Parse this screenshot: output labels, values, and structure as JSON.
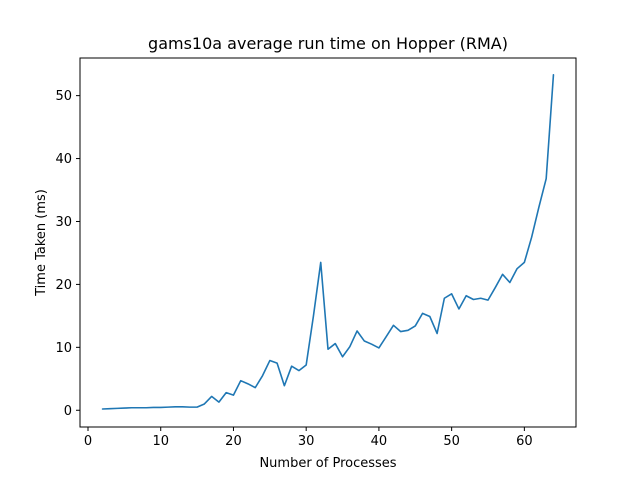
{
  "chart_data": {
    "type": "line",
    "title": "gams10a average run time on Hopper (RMA)",
    "xlabel": "Number of Processes",
    "ylabel": "Time Taken (ms)",
    "xlim": [
      -1.1,
      67.1
    ],
    "ylim": [
      -2.66,
      55.98
    ],
    "xticks": [
      0,
      10,
      20,
      30,
      40,
      50,
      60
    ],
    "yticks": [
      0,
      10,
      20,
      30,
      40,
      50
    ],
    "grid": false,
    "line_color": "#1f77b4",
    "series": [
      {
        "x": [
          2,
          3,
          4,
          5,
          6,
          7,
          8,
          9,
          10,
          11,
          12,
          13,
          14,
          15,
          16,
          17,
          18,
          19,
          20,
          21,
          22,
          23,
          24,
          25,
          26,
          27,
          28,
          29,
          30,
          31,
          32,
          33,
          34,
          35,
          36,
          37,
          38,
          39,
          40,
          41,
          42,
          43,
          44,
          45,
          46,
          47,
          48,
          49,
          50,
          51,
          52,
          53,
          54,
          55,
          56,
          57,
          58,
          59,
          60,
          61,
          62,
          63,
          64
        ],
        "values": [
          0.2,
          0.25,
          0.3,
          0.35,
          0.4,
          0.4,
          0.4,
          0.45,
          0.45,
          0.5,
          0.55,
          0.55,
          0.5,
          0.5,
          1.0,
          2.2,
          1.3,
          2.8,
          2.4,
          4.7,
          4.2,
          3.6,
          5.5,
          7.9,
          7.5,
          3.9,
          7.0,
          6.3,
          7.2,
          15.0,
          23.5,
          9.7,
          10.6,
          8.5,
          10.1,
          12.6,
          11.0,
          10.5,
          9.9,
          11.7,
          13.5,
          12.5,
          12.7,
          13.4,
          15.4,
          14.9,
          12.2,
          17.8,
          18.5,
          16.1,
          18.2,
          17.6,
          17.8,
          17.5,
          19.5,
          21.6,
          20.3,
          22.5,
          23.5,
          27.5,
          32.3,
          36.8,
          53.3
        ]
      }
    ]
  }
}
